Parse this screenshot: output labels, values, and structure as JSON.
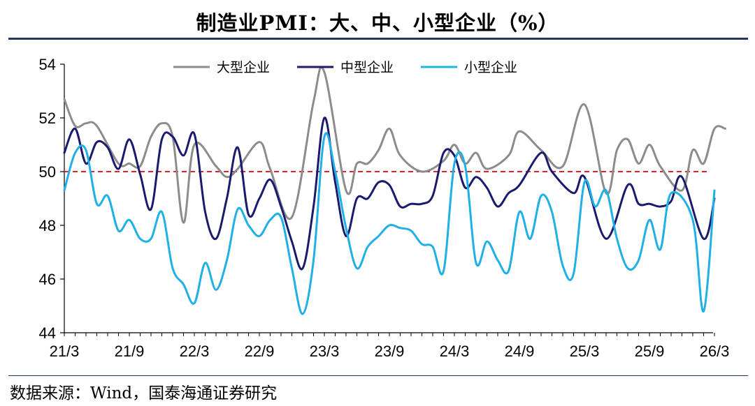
{
  "title": "制造业PMI：大、中、小型企业（%）",
  "source": "数据来源：Wind，国泰海通证券研究",
  "chart_data": {
    "type": "line",
    "title": "制造业PMI：大、中、小型企业（%）",
    "xlabel": "",
    "ylabel": "",
    "ylim": [
      44,
      54
    ],
    "yticks": [
      44,
      46,
      48,
      50,
      52,
      54
    ],
    "x_tick_labels": [
      "21/3",
      "21/9",
      "22/3",
      "22/9",
      "23/3",
      "23/9",
      "24/3",
      "24/9",
      "25/3",
      "25/9",
      "26/3"
    ],
    "x_tick_index": [
      0,
      6,
      12,
      18,
      24,
      30,
      36,
      42,
      48,
      54,
      60
    ],
    "reference_line": {
      "value": 50,
      "color": "#e8202a",
      "style": "dashed"
    },
    "legend_position": "top-center",
    "series": [
      {
        "name": "大型企业",
        "color": "#8c8c8c",
        "values": [
          52.7,
          51.7,
          51.8,
          51.7,
          50.3,
          50.3,
          50.2,
          51.3,
          51.8,
          51.3,
          48.1,
          51.0,
          50.2,
          49.8,
          50.1,
          51.1,
          50.1,
          48.3,
          52.6,
          53.7,
          49.3,
          50.3,
          50.3,
          50.8,
          51.6,
          50.6,
          50.0,
          50.4,
          51.0,
          50.3,
          50.7,
          50.1,
          50.6,
          51.5,
          50.8,
          50.2,
          52.5,
          49.2,
          50.8,
          51.2,
          50.3,
          51.0,
          50.2,
          49.3,
          50.8,
          50.3,
          51.6,
          51.6
        ],
        "x_index": [
          0,
          1,
          2,
          3,
          5,
          6,
          7,
          8,
          9,
          10,
          11,
          12,
          14,
          15,
          16,
          18,
          19,
          21,
          23,
          24,
          26,
          27,
          28,
          29,
          30,
          31,
          33,
          35,
          36,
          37,
          38,
          39,
          41,
          42,
          44,
          46,
          48,
          50,
          51,
          52,
          53,
          54,
          55,
          57,
          58,
          59,
          60,
          61
        ]
      },
      {
        "name": "中型企业",
        "color": "#1a1a6e",
        "values": [
          50.7,
          51.6,
          50.3,
          51.1,
          50.9,
          50.1,
          51.2,
          49.9,
          48.6,
          51.2,
          51.3,
          50.6,
          51.4,
          48.5,
          47.5,
          49.0,
          50.9,
          48.4,
          49.0,
          49.7,
          48.7,
          47.4,
          46.4,
          48.7,
          52.0,
          49.6,
          47.6,
          49.0,
          49.0,
          49.6,
          49.5,
          48.7,
          48.8,
          48.8,
          49.1,
          50.7,
          50.6,
          49.4,
          49.8,
          49.4,
          48.7,
          49.2,
          49.5,
          50.7,
          50.0,
          49.2,
          49.8,
          47.5,
          49.5,
          48.8,
          48.8,
          48.7,
          48.9,
          49.8,
          47.5,
          49.0
        ],
        "x_index": [
          0,
          1,
          2,
          3,
          4,
          5,
          6,
          7,
          8,
          9,
          10,
          11,
          12,
          13,
          14,
          15,
          16,
          17,
          18,
          19,
          20,
          21,
          22,
          23,
          24,
          25,
          26,
          27,
          28,
          29,
          30,
          31,
          32,
          33,
          34,
          35,
          36,
          37,
          38,
          39,
          40,
          41,
          42,
          44,
          45,
          47,
          48,
          50,
          52,
          53,
          54,
          55,
          56,
          57,
          59,
          60
        ]
      },
      {
        "name": "小型企业",
        "color": "#1eb0e6",
        "values": [
          49.3,
          50.7,
          50.8,
          48.8,
          49.1,
          47.8,
          48.2,
          47.5,
          47.5,
          48.5,
          46.4,
          45.8,
          45.1,
          46.6,
          45.6,
          46.7,
          48.6,
          48.0,
          47.6,
          48.2,
          48.3,
          46.4,
          44.7,
          46.7,
          51.3,
          50.0,
          47.9,
          46.4,
          47.2,
          47.6,
          48.0,
          47.9,
          47.8,
          47.3,
          47.2,
          46.3,
          50.3,
          50.2,
          46.6,
          47.4,
          46.7,
          46.3,
          48.5,
          47.5,
          49.1,
          48.5,
          46.5,
          46.2,
          49.6,
          48.7,
          49.3,
          47.5,
          46.4,
          46.7,
          48.2,
          47.1,
          49.2,
          48.2,
          44.8,
          49.3
        ],
        "x_index": [
          0,
          1,
          2,
          3,
          4,
          5,
          6,
          7,
          8,
          9,
          10,
          11,
          12,
          13,
          14,
          15,
          16,
          17,
          18,
          19,
          20,
          21,
          22,
          23,
          24,
          25,
          26,
          27,
          28,
          29,
          30,
          31,
          32,
          33,
          34,
          35,
          36,
          37,
          38,
          39,
          40,
          41,
          42,
          43,
          44,
          45,
          46,
          47,
          48,
          49,
          50,
          51,
          52,
          53,
          54,
          55,
          56,
          58,
          59,
          60
        ]
      }
    ]
  }
}
